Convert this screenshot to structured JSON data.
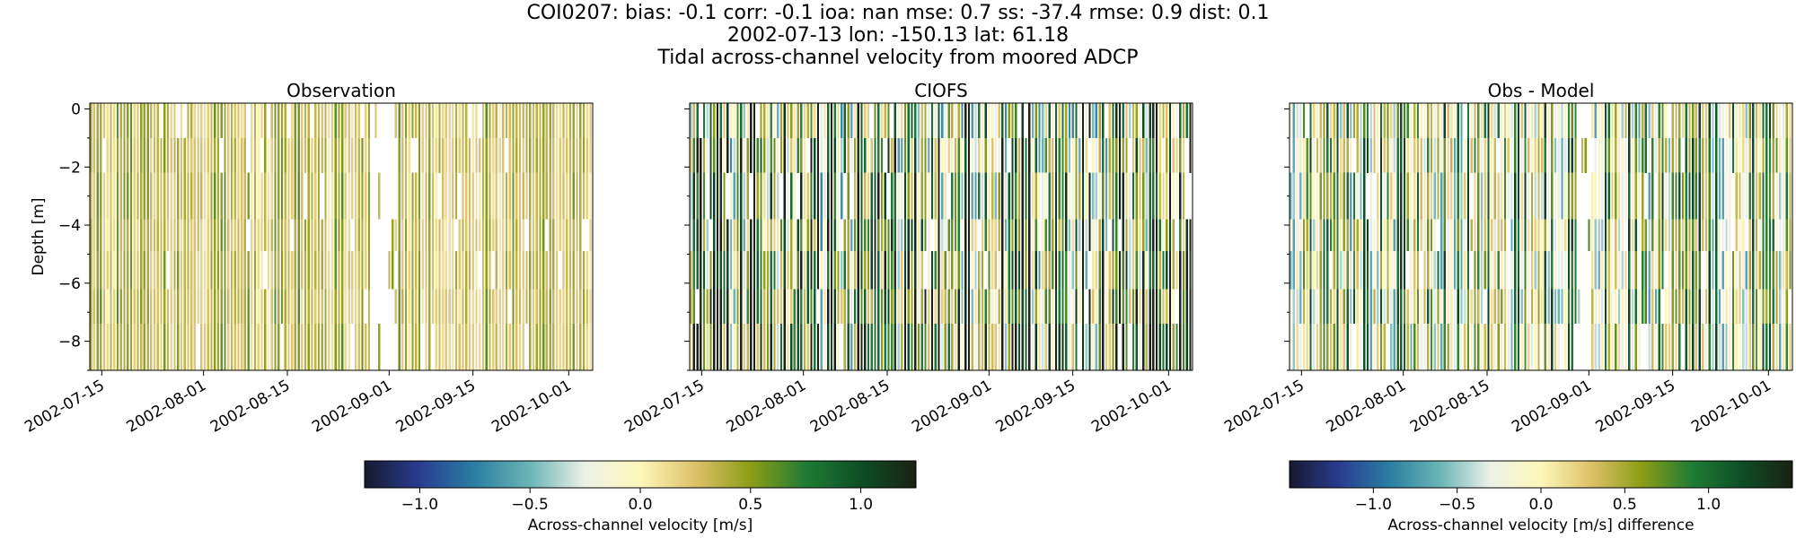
{
  "figure": {
    "title_lines": [
      "COI0207: bias: -0.1  corr: -0.1  ioa: nan  mse: 0.7  ss: -37.4  rmse: 0.9  dist: 0.1",
      "2002-07-13 lon: -150.13 lat: 61.18",
      "Tidal across-channel velocity from moored ADCP"
    ]
  },
  "chart_data": [
    {
      "type": "heatmap",
      "title": "Observation",
      "ylabel": "Depth [m]",
      "xlabel": "",
      "xlim": [
        "2002-07-13",
        "2002-10-05"
      ],
      "ylim": [
        -9,
        0.2
      ],
      "y_ticks": [
        0,
        -2,
        -4,
        -6,
        -8
      ],
      "y_tick_labels": [
        "0",
        "−2",
        "−4",
        "−6",
        "−8"
      ],
      "x_tick_labels": [
        "2002-07-15",
        "2002-08-01",
        "2002-08-15",
        "2002-09-01",
        "2002-09-15",
        "2002-10-01"
      ],
      "x_tick_dates": [
        "2002-07-15",
        "2002-08-01",
        "2002-08-15",
        "2002-09-01",
        "2002-09-15",
        "2002-10-01"
      ],
      "data_gap": [
        "2002-08-29",
        "2002-09-02"
      ],
      "value_range": [
        0.1,
        0.55
      ],
      "colormap": "delta",
      "colorbar": "shared-velocity"
    },
    {
      "type": "heatmap",
      "title": "CIOFS",
      "xlim": [
        "2002-07-13",
        "2002-10-05"
      ],
      "ylim": [
        -9,
        0.2
      ],
      "y_ticks": [
        0,
        -2,
        -4,
        -6,
        -8
      ],
      "x_tick_labels": [
        "2002-07-15",
        "2002-08-01",
        "2002-08-15",
        "2002-09-01",
        "2002-09-15",
        "2002-10-01"
      ],
      "x_tick_dates": [
        "2002-07-15",
        "2002-08-01",
        "2002-08-15",
        "2002-09-01",
        "2002-09-15",
        "2002-10-01"
      ],
      "value_range": [
        -0.6,
        1.3
      ],
      "colormap": "delta",
      "colorbar": "shared-velocity"
    },
    {
      "type": "heatmap",
      "title": "Obs - Model",
      "xlim": [
        "2002-07-13",
        "2002-10-05"
      ],
      "ylim": [
        -9,
        0.2
      ],
      "y_ticks": [
        0,
        -2,
        -4,
        -6,
        -8
      ],
      "x_tick_labels": [
        "2002-07-15",
        "2002-08-01",
        "2002-08-15",
        "2002-09-01",
        "2002-09-15",
        "2002-10-01"
      ],
      "x_tick_dates": [
        "2002-07-15",
        "2002-08-01",
        "2002-08-15",
        "2002-09-01",
        "2002-09-15",
        "2002-10-01"
      ],
      "data_gap": [
        "2002-08-30",
        "2002-09-01"
      ],
      "value_range": [
        -0.6,
        1.2
      ],
      "colormap": "delta",
      "colorbar": "difference"
    }
  ],
  "colorbars": [
    {
      "id": "shared-velocity",
      "label": "Across-channel velocity [m/s]",
      "vmin": -1.25,
      "vmax": 1.25,
      "ticks": [
        -1.0,
        -0.5,
        0.0,
        0.5,
        1.0
      ],
      "tick_labels": [
        "−1.0",
        "−0.5",
        "0.0",
        "0.5",
        "1.0"
      ]
    },
    {
      "id": "difference",
      "label": "Across-channel velocity [m/s] difference",
      "vmin": -1.5,
      "vmax": 1.5,
      "ticks": [
        -1.0,
        -0.5,
        0.0,
        0.5,
        1.0
      ],
      "tick_labels": [
        "−1.0",
        "−0.5",
        "0.0",
        "0.5",
        "1.0"
      ]
    }
  ],
  "colormap_stops": [
    "#16192f",
    "#2a3c91",
    "#2a7fa2",
    "#6bb5b6",
    "#ecf1e8",
    "#fdf6b9",
    "#ddc169",
    "#8c9d16",
    "#1f7c34",
    "#0d4e25",
    "#1b2012"
  ]
}
